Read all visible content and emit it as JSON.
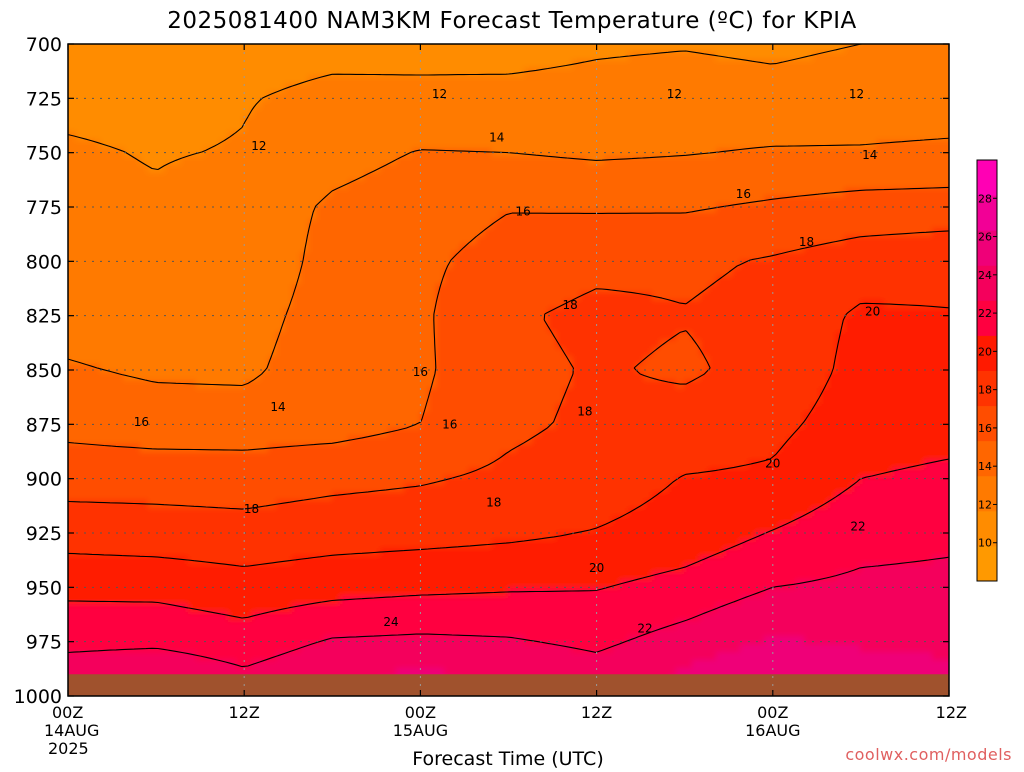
{
  "colors": {
    "fill_scale": [
      "#ff9900",
      "#ff8c00",
      "#ff7a00",
      "#ff6600",
      "#ff4d00",
      "#ff3300",
      "#ff1a00",
      "#ff0040",
      "#f4005c",
      "#ef0078",
      "#f20096",
      "#ff00b4"
    ],
    "ground": "#a0522d",
    "contour": "#000000",
    "grid": "#555555",
    "credit": "#e06060"
  },
  "chart_data": {
    "type": "heatmap",
    "title": "2025081400 NAM3KM Forecast Temperature (ºC) for KPIA",
    "xlabel": "Forecast Time (UTC)",
    "ylabel": "",
    "x_unit": "forecast hour",
    "xlim": [
      0,
      60
    ],
    "ylim": [
      1000,
      700
    ],
    "x_ticks": [
      {
        "hour": 0,
        "line1": "00Z",
        "line2": "14AUG",
        "line3": "2025"
      },
      {
        "hour": 12,
        "line1": "12Z",
        "line2": "",
        "line3": ""
      },
      {
        "hour": 24,
        "line1": "00Z",
        "line2": "15AUG",
        "line3": ""
      },
      {
        "hour": 36,
        "line1": "12Z",
        "line2": "",
        "line3": ""
      },
      {
        "hour": 48,
        "line1": "00Z",
        "line2": "16AUG",
        "line3": ""
      },
      {
        "hour": 60,
        "line1": "12Z",
        "line2": "",
        "line3": ""
      }
    ],
    "y_ticks": [
      700,
      725,
      750,
      775,
      800,
      825,
      850,
      875,
      900,
      925,
      950,
      975,
      1000
    ],
    "colorbar": {
      "ticks": [
        10,
        12,
        14,
        16,
        18,
        20,
        22,
        24,
        26,
        28
      ],
      "min": 8,
      "max": 30
    },
    "contour_levels": [
      12,
      14,
      16,
      18,
      20,
      22,
      24
    ],
    "contour_labels": [
      {
        "value": "12",
        "hour": 25.3,
        "p": 723
      },
      {
        "value": "12",
        "hour": 41.3,
        "p": 723
      },
      {
        "value": "12",
        "hour": 53.7,
        "p": 723
      },
      {
        "value": "12",
        "hour": 13.0,
        "p": 747
      },
      {
        "value": "14",
        "hour": 29.2,
        "p": 743
      },
      {
        "value": "14",
        "hour": 54.6,
        "p": 751
      },
      {
        "value": "16",
        "hour": 31.0,
        "p": 777
      },
      {
        "value": "16",
        "hour": 46.0,
        "p": 769
      },
      {
        "value": "18",
        "hour": 50.3,
        "p": 791
      },
      {
        "value": "18",
        "hour": 34.2,
        "p": 820
      },
      {
        "value": "20",
        "hour": 54.8,
        "p": 823
      },
      {
        "value": "16",
        "hour": 24.0,
        "p": 851
      },
      {
        "value": "14",
        "hour": 14.3,
        "p": 867
      },
      {
        "value": "16",
        "hour": 5.0,
        "p": 874
      },
      {
        "value": "16",
        "hour": 26.0,
        "p": 875
      },
      {
        "value": "18",
        "hour": 35.2,
        "p": 869
      },
      {
        "value": "20",
        "hour": 48.0,
        "p": 893
      },
      {
        "value": "18",
        "hour": 12.5,
        "p": 914
      },
      {
        "value": "18",
        "hour": 29.0,
        "p": 911
      },
      {
        "value": "22",
        "hour": 53.8,
        "p": 922
      },
      {
        "value": "20",
        "hour": 36.0,
        "p": 941
      },
      {
        "value": "24",
        "hour": 22.0,
        "p": 966
      },
      {
        "value": "22",
        "hour": 39.3,
        "p": 969
      }
    ],
    "surface_pressure": 990,
    "temperature_field": {
      "note": "Temperature (ºC) at sampled forecast hours (columns) and pressure levels (rows); values estimated from the filled contours.",
      "hours": [
        0,
        6,
        12,
        18,
        24,
        30,
        36,
        42,
        48,
        54,
        60
      ],
      "levels_hpa": [
        700,
        725,
        750,
        775,
        800,
        825,
        850,
        875,
        900,
        925,
        950,
        975,
        990
      ],
      "values": [
        [
          11.2,
          11.0,
          11.3,
          11.5,
          11.6,
          11.5,
          11.8,
          11.9,
          11.7,
          12.0,
          12.1
        ],
        [
          11.6,
          11.5,
          11.9,
          12.4,
          12.3,
          12.4,
          12.5,
          12.7,
          12.5,
          12.8,
          12.9
        ],
        [
          12.2,
          11.9,
          12.1,
          13.3,
          14.1,
          14.0,
          13.7,
          13.9,
          14.2,
          14.2,
          14.4
        ],
        [
          12.4,
          12.2,
          12.8,
          14.3,
          15.0,
          15.9,
          15.8,
          15.8,
          16.3,
          16.8,
          16.9
        ],
        [
          12.8,
          12.6,
          12.6,
          14.7,
          15.6,
          16.8,
          17.5,
          17.6,
          18.2,
          19.0,
          19.4
        ],
        [
          13.2,
          12.9,
          13.2,
          14.9,
          15.7,
          17.7,
          18.5,
          18.1,
          18.7,
          20.3,
          20.1
        ],
        [
          14.2,
          13.7,
          13.6,
          15.2,
          15.7,
          17.4,
          18.2,
          17.7,
          18.7,
          20.6,
          20.3
        ],
        [
          15.4,
          15.0,
          15.0,
          15.2,
          16.0,
          17.6,
          18.4,
          18.8,
          19.5,
          21.0,
          21.3
        ],
        [
          17.2,
          17.2,
          17.1,
          17.5,
          17.8,
          18.4,
          19.0,
          20.1,
          20.3,
          22.0,
          22.4
        ],
        [
          19.1,
          18.9,
          18.7,
          19.1,
          19.3,
          19.6,
          20.1,
          20.8,
          22.1,
          23.3,
          23.6
        ],
        [
          21.5,
          21.4,
          20.8,
          21.3,
          21.6,
          21.8,
          21.9,
          22.7,
          24.0,
          24.4,
          24.5
        ],
        [
          23.5,
          23.6,
          22.9,
          24.2,
          24.4,
          24.2,
          23.6,
          24.8,
          26.2,
          25.8,
          25.6
        ],
        [
          25.0,
          25.6,
          24.3,
          25.6,
          26.3,
          25.6,
          24.8,
          26.3,
          27.7,
          26.7,
          26.4
        ]
      ]
    },
    "grid": true
  },
  "credit": "coolwx.com/models"
}
